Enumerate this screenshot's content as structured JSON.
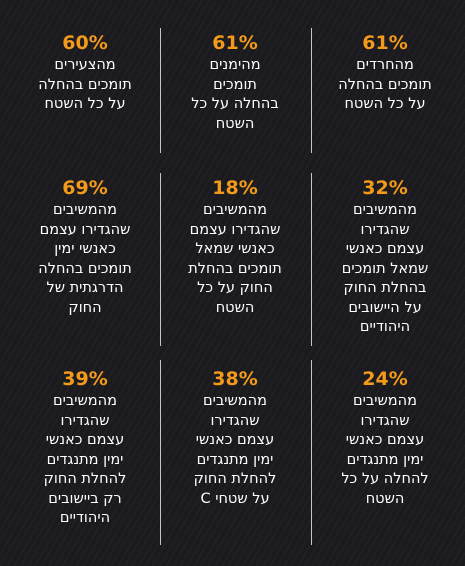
{
  "stats": [
    {
      "pct": "61%",
      "text": "מהחרדים\nתומכים בהחלה\nעל כל השטח"
    },
    {
      "pct": "61%",
      "text": "מהימנים\nתומכים\nבהחלה על כל\nהשטח"
    },
    {
      "pct": "60%",
      "text": "מהצעירים\nתומכים בהחלה\nעל כל השטח"
    },
    {
      "pct": "32%",
      "text": "מהמשיבים\nשהגדירו\nעצמם כאנשי\nשמאל תומכים\nבהחלת החוק\nעל היישובים\nהיהודיים"
    },
    {
      "pct": "18%",
      "text": "מהמשיבים\nשהגדירו עצמם\nכאנשי שמאל\nתומכים בהחלת\nהחוק על כל\nהשטח"
    },
    {
      "pct": "69%",
      "text": "מהמשיבים\nשהגדירו עצמם\nכאנשי ימין\nתומכים בהחלה\nהדרגתית של\nהחוק"
    },
    {
      "pct": "24%",
      "text": "מהמשיבים\nשהגדירו\nעצמם כאנשי\nימין מתנגדים\nלהחלה על כל\nהשטח"
    },
    {
      "pct": "38%",
      "text": "מהמשיבים\nשהגדירו\nעצמם כאנשי\nימין מתנגדים\nלהחלת החוק\nעל שטחי C"
    },
    {
      "pct": "39%",
      "text": "מהמשיבים\nשהגדירו\nעצמם כאנשי\nימין מתנגדים\nלהחלת החוק\nרק ביישובים\nהיהודיים"
    }
  ]
}
